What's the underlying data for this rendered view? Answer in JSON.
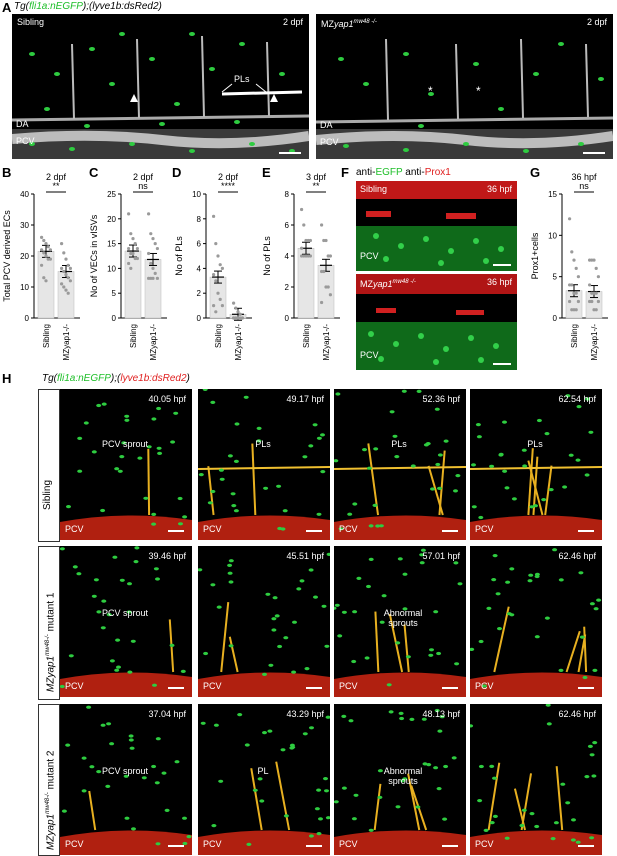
{
  "panel_letters": {
    "A": "A",
    "B": "B",
    "C": "C",
    "D": "D",
    "E": "E",
    "F": "F",
    "G": "G",
    "H": "H"
  },
  "panel_A": {
    "title_prefix": "Tg(",
    "title_fli": "fli1a:nEGFP",
    "title_mid": ");(",
    "title_lyve": "lyve1b:dsRed2",
    "title_suffix": ")",
    "left": {
      "label": "Sibling",
      "stage": "2 dpf",
      "pls": "PLs",
      "da": "DA",
      "pcv": "PCV"
    },
    "right": {
      "label_prefix": "MZ",
      "label_gene": "yap1",
      "label_sup": "mw48 -/-",
      "stage": "2 dpf",
      "star1": "*",
      "star2": "*",
      "da": "DA",
      "pcv": "PCV"
    }
  },
  "chart_data": [
    {
      "panel": "B",
      "type": "bar",
      "title": "2 dpf",
      "ylabel": "Total PCV derived ECs",
      "categories": [
        "Sibling",
        "MZyap1-/-"
      ],
      "values": [
        21.5,
        15
      ],
      "ylim": [
        0,
        40
      ],
      "yticks": [
        "0",
        "10",
        "20",
        "30",
        "40"
      ],
      "significance": "**",
      "points": [
        [
          26,
          25,
          24,
          23,
          22,
          22,
          21,
          20,
          19,
          19,
          17,
          13,
          12
        ],
        [
          24,
          21,
          19,
          17,
          16,
          16,
          15,
          14,
          13,
          12,
          11,
          10,
          9,
          8
        ]
      ]
    },
    {
      "panel": "C",
      "type": "bar",
      "title": "2 dpf",
      "ylabel": "No of VECs in vISVs",
      "categories": [
        "Sibling",
        "MZyap1-/-"
      ],
      "values": [
        13.5,
        11.8
      ],
      "ylim": [
        0,
        25
      ],
      "yticks": [
        "0",
        "5",
        "10",
        "15",
        "20",
        "25"
      ],
      "significance": "ns",
      "points": [
        [
          21,
          17,
          16,
          15,
          14,
          14,
          13,
          13,
          12,
          12,
          11,
          10
        ],
        [
          21,
          17,
          16,
          15,
          14,
          13,
          11,
          10,
          9,
          8,
          8,
          8,
          8
        ]
      ]
    },
    {
      "panel": "D",
      "type": "bar",
      "title": "2 dpf",
      "ylabel": "No of PLs",
      "categories": [
        "Sibling",
        "MZyap1-/-"
      ],
      "values": [
        3.3,
        0.3
      ],
      "ylim": [
        0,
        10
      ],
      "yticks": [
        "0",
        "2",
        "4",
        "6",
        "8",
        "10"
      ],
      "significance": "****",
      "points": [
        [
          8.2,
          6,
          5,
          4.3,
          4,
          3.5,
          3,
          2,
          1.5,
          1,
          1,
          0.5
        ],
        [
          1.2,
          0.8,
          0.5,
          0.3,
          0,
          0,
          0,
          0,
          0,
          0,
          0,
          0
        ]
      ]
    },
    {
      "panel": "E",
      "type": "bar",
      "title": "3 dpf",
      "ylabel": "No of PLs",
      "categories": [
        "Sibling",
        "MZyap1-/-"
      ],
      "values": [
        4.5,
        3.4
      ],
      "ylim": [
        0,
        8
      ],
      "yticks": [
        "0",
        "2",
        "4",
        "6",
        "8"
      ],
      "significance": "**",
      "points": [
        [
          7,
          6,
          5,
          5,
          5,
          4.5,
          4,
          4,
          4,
          4,
          4
        ],
        [
          6,
          5,
          5,
          4,
          4,
          3,
          3,
          2,
          2,
          1.5,
          1
        ]
      ]
    },
    {
      "panel": "G",
      "type": "bar",
      "title": "36 hpf",
      "ylabel": "Prox1+cells",
      "categories": [
        "Sibling",
        "MZyap1-/-"
      ],
      "values": [
        3.3,
        3.2
      ],
      "ylim": [
        0,
        15
      ],
      "yticks": [
        "0",
        "5",
        "10",
        "15"
      ],
      "significance": "ns",
      "points": [
        [
          12,
          8,
          7,
          6,
          5,
          4,
          4,
          3,
          3,
          2,
          2,
          1,
          1,
          1
        ],
        [
          7,
          7,
          7,
          6,
          5,
          4,
          3,
          3,
          3,
          2,
          2,
          2,
          1,
          1
        ]
      ]
    }
  ],
  "panel_F": {
    "title_prefix": "anti-",
    "title_egfp": "EGFP",
    "title_mid": " anti-",
    "title_prox": "Prox1",
    "top": {
      "label": "Sibling",
      "stage": "36 hpf",
      "pcv": "PCV"
    },
    "bottom": {
      "label_prefix": "MZ",
      "label_gene": "yap1",
      "label_sup": "mw48 -/-",
      "stage": "36 hpf",
      "pcv": "PCV"
    }
  },
  "panel_H": {
    "title_prefix": "Tg(",
    "title_fli": "fli1a:nEGFP",
    "title_mid": ");(",
    "title_lyve": "lyve1b:dsRed2",
    "title_suffix": ")",
    "rows": [
      {
        "label": "Sibling",
        "frames": [
          {
            "time": "40.05 hpf",
            "note": "PCV sprout",
            "pcv": "PCV"
          },
          {
            "time": "49.17 hpf",
            "note": "PLs",
            "pcv": "PCV"
          },
          {
            "time": "52.36 hpf",
            "note": "PLs",
            "pcv": "PCV"
          },
          {
            "time": "62.54 hpf",
            "note": "PLs",
            "pcv": "PCV"
          }
        ]
      },
      {
        "label_gene": "MZyap1",
        "label_sup": "mw48-/-",
        "label_rest": " mutant 1",
        "frames": [
          {
            "time": "39.46 hpf",
            "note": "PCV sprout",
            "pcv": "PCV"
          },
          {
            "time": "45.51 hpf",
            "note": "",
            "pcv": "PCV"
          },
          {
            "time": "57.01 hpf",
            "note": "Abnormal sprouts",
            "pcv": "PCV"
          },
          {
            "time": "62.46 hpf",
            "note": "",
            "pcv": "PCV"
          }
        ]
      },
      {
        "label_gene": "MZyap1",
        "label_sup": "mw48-/-",
        "label_rest": " mutant 2",
        "frames": [
          {
            "time": "37.04 hpf",
            "note": "PCV sprout",
            "pcv": "PCV"
          },
          {
            "time": "43.29 hpf",
            "note": "PL",
            "pcv": "PCV"
          },
          {
            "time": "48.13 hpf",
            "note": "Abnormal sprouts",
            "pcv": "PCV"
          },
          {
            "time": "62.46 hpf",
            "note": "",
            "pcv": "PCV"
          }
        ]
      }
    ]
  },
  "colors": {
    "egfp": "#1fbf2a",
    "dsred": "#e02020",
    "bar_fill": "#e6e6e6",
    "points": "#9a9a9a"
  }
}
